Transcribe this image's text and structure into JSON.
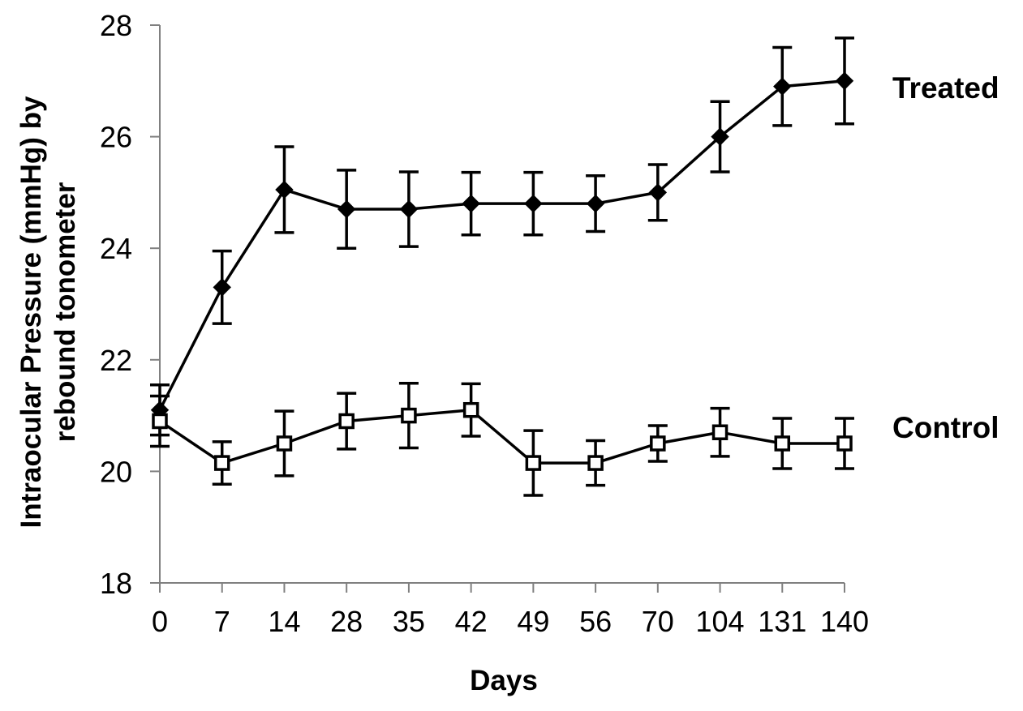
{
  "chart_data": {
    "type": "line",
    "title": "",
    "xlabel": "Days",
    "ylabel_lines": [
      "Intraocular Pressure (mmHg) by",
      "rebound tonometer"
    ],
    "categories": [
      "0",
      "7",
      "14",
      "28",
      "35",
      "42",
      "49",
      "56",
      "70",
      "104",
      "131",
      "140"
    ],
    "ylim": [
      18,
      28
    ],
    "yticks": [
      "18",
      "20",
      "22",
      "24",
      "26",
      "28"
    ],
    "ytick_values": [
      18,
      20,
      22,
      24,
      26,
      28
    ],
    "grid": false,
    "legend": "direct labels at right",
    "series": [
      {
        "name": "Treated",
        "marker": "filled-diamond",
        "color": "#000000",
        "values": [
          21.1,
          23.3,
          25.05,
          24.7,
          24.7,
          24.8,
          24.8,
          24.8,
          25.0,
          26.0,
          26.9,
          27.0
        ],
        "errors": [
          0.45,
          0.65,
          0.77,
          0.7,
          0.67,
          0.56,
          0.56,
          0.5,
          0.5,
          0.63,
          0.7,
          0.77
        ]
      },
      {
        "name": "Control",
        "marker": "open-square",
        "color": "#000000",
        "values": [
          20.9,
          20.15,
          20.5,
          20.9,
          21.0,
          21.1,
          20.15,
          20.15,
          20.5,
          20.7,
          20.5,
          20.5
        ],
        "errors": [
          0.45,
          0.38,
          0.58,
          0.5,
          0.58,
          0.47,
          0.58,
          0.4,
          0.32,
          0.43,
          0.45,
          0.45
        ]
      }
    ]
  }
}
